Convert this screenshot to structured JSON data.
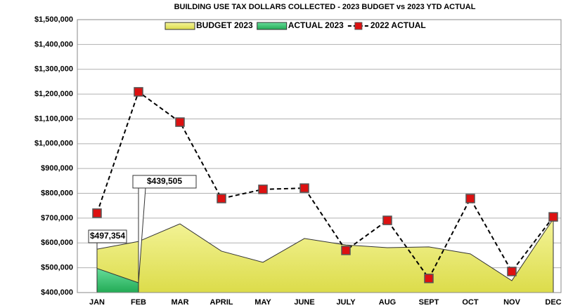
{
  "chart_data": {
    "type": "line",
    "title": "BUILDING USE TAX DOLLARS COLLECTED - 2023 BUDGET vs 2023 YTD ACTUAL",
    "categories": [
      "JAN",
      "FEB",
      "MAR",
      "APRIL",
      "MAY",
      "JUNE",
      "JULY",
      "AUG",
      "SEPT",
      "OCT",
      "NOV",
      "DEC"
    ],
    "series": [
      {
        "name": "BUDGET 2023",
        "kind": "area",
        "color": "#eeee77",
        "values": [
          575000,
          606000,
          677000,
          567000,
          522000,
          618000,
          592000,
          581000,
          584000,
          556000,
          448000,
          697000
        ]
      },
      {
        "name": "ACTUAL 2023",
        "kind": "area",
        "color": "#44cc77",
        "values": [
          497354,
          439505,
          null,
          null,
          null,
          null,
          null,
          null,
          null,
          null,
          null,
          null
        ],
        "value_labels": [
          "$497,354",
          "$439,505",
          null,
          null,
          null,
          null,
          null,
          null,
          null,
          null,
          null,
          null
        ]
      },
      {
        "name": "2022 ACTUAL",
        "kind": "line",
        "color": "#000000",
        "marker_color": "#dd1111",
        "values": [
          720000,
          1209000,
          1087000,
          779000,
          816000,
          821000,
          570000,
          691000,
          457000,
          779000,
          485000,
          705000
        ]
      }
    ],
    "ylim": [
      400000,
      1500000
    ],
    "yticks": [
      {
        "value": 400000,
        "label": "$400,000"
      },
      {
        "value": 500000,
        "label": "$500,000"
      },
      {
        "value": 600000,
        "label": "$600,000"
      },
      {
        "value": 700000,
        "label": "$700,000"
      },
      {
        "value": 800000,
        "label": "$800,000"
      },
      {
        "value": 900000,
        "label": "$900,000"
      },
      {
        "value": 1000000,
        "label": "$1,000,000"
      },
      {
        "value": 1100000,
        "label": "$1,100,000"
      },
      {
        "value": 1200000,
        "label": "$1,200,000"
      },
      {
        "value": 1300000,
        "label": "$1,300,000"
      },
      {
        "value": 1400000,
        "label": "$1,400,000"
      },
      {
        "value": 1500000,
        "label": "$1,500,000"
      }
    ],
    "grid": true,
    "legend": "top"
  }
}
